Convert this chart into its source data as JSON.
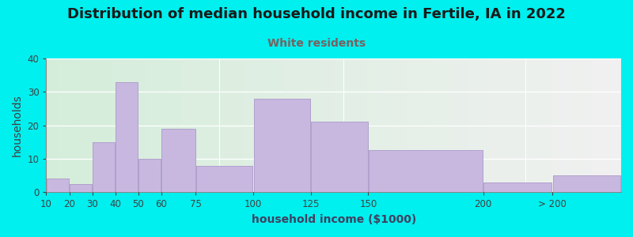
{
  "title": "Distribution of median household income in Fertile, IA in 2022",
  "subtitle": "White residents",
  "xlabel": "household income ($1000)",
  "ylabel": "households",
  "background_outer": "#00EFEF",
  "background_inner_left": "#d4edda",
  "background_inner_right": "#f0f0f0",
  "bar_color": "#c8b8e0",
  "bar_edge_color": "#b0a0cc",
  "tick_color": "#404040",
  "title_color": "#1a1a1a",
  "subtitle_color": "#7a6060",
  "xlabel_color": "#404060",
  "ylabel_color": "#404040",
  "bar_left_edges": [
    10,
    20,
    30,
    40,
    50,
    60,
    75,
    100,
    125,
    150,
    200,
    230
  ],
  "bar_widths": [
    10,
    10,
    10,
    10,
    10,
    15,
    25,
    25,
    25,
    50,
    30,
    30
  ],
  "values": [
    4,
    2.5,
    15,
    33,
    10,
    19,
    8,
    28,
    21,
    12.5,
    3,
    5
  ],
  "xtick_positions": [
    10,
    20,
    30,
    40,
    50,
    60,
    75,
    100,
    125,
    150,
    200,
    230
  ],
  "xtick_labels": [
    "10",
    "20",
    "30",
    "40",
    "50",
    "60",
    "75",
    "100",
    "125",
    "150",
    "200",
    "> 200"
  ],
  "xlim": [
    10,
    260
  ],
  "ylim": [
    0,
    40
  ],
  "yticks": [
    0,
    10,
    20,
    30,
    40
  ],
  "title_fontsize": 13,
  "subtitle_fontsize": 10,
  "axis_label_fontsize": 10,
  "tick_fontsize": 8.5
}
